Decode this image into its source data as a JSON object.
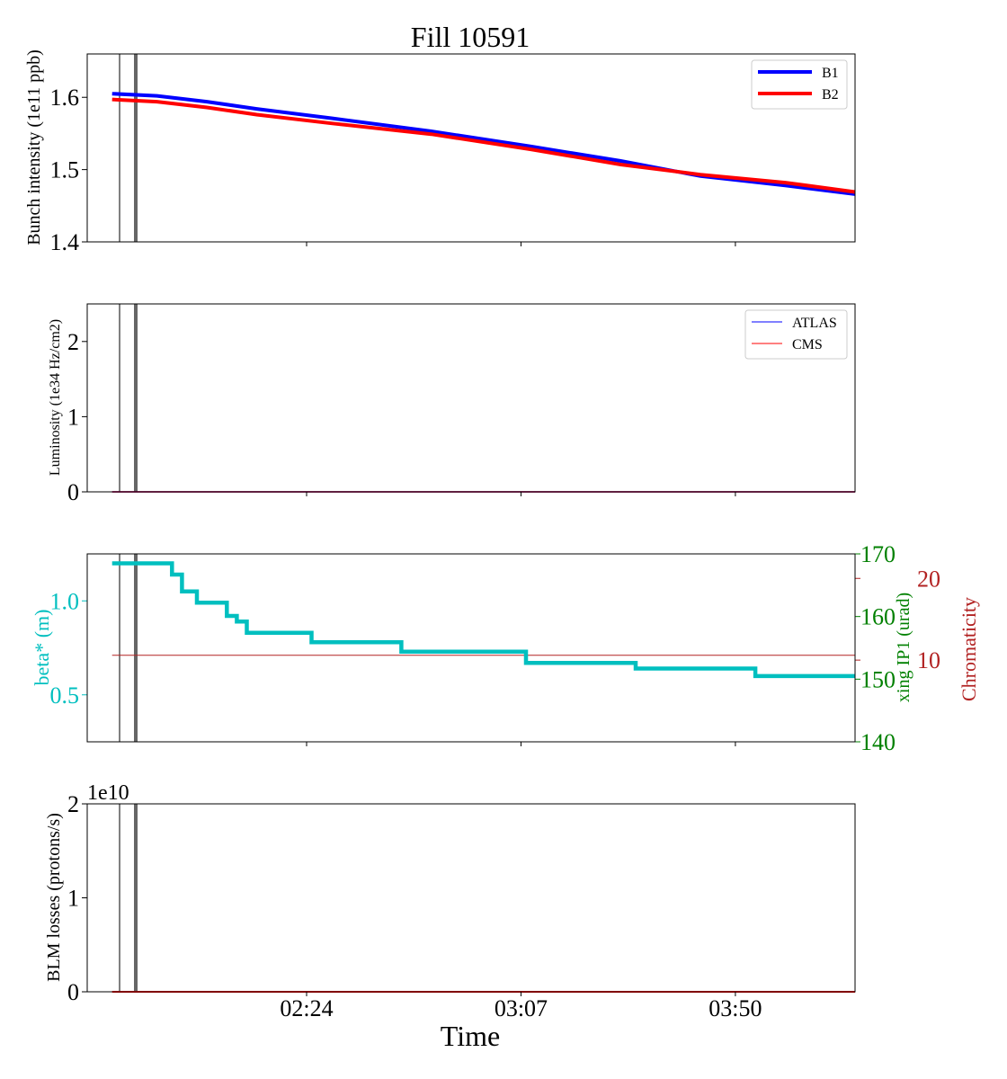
{
  "figure": {
    "title": "Fill 10591",
    "xlabel": "Time",
    "x_ticks": [
      "02:24",
      "03:07",
      "03:50"
    ]
  },
  "colors": {
    "b1": "#0000ff",
    "b2": "#ff0000",
    "beta": "#00bfbf",
    "xing": "#008000",
    "chroma": "#b22222",
    "marker": "#666666"
  },
  "chart_data": [
    {
      "type": "line",
      "ylabel": "Bunch intensity (1e11 ppb)",
      "ylim": [
        1.4,
        1.66
      ],
      "y_ticks": [
        "1.4",
        "1.5",
        "1.6"
      ],
      "legend": "top-right",
      "x": [
        "01:45",
        "01:54",
        "02:04",
        "02:14",
        "02:29",
        "02:49",
        "03:09",
        "03:27",
        "03:43",
        "04:00",
        "04:14"
      ],
      "series": [
        {
          "name": "B1",
          "values": [
            1.605,
            1.602,
            1.594,
            1.584,
            1.571,
            1.553,
            1.532,
            1.512,
            1.491,
            1.478,
            1.466
          ]
        },
        {
          "name": "B2",
          "values": [
            1.597,
            1.594,
            1.586,
            1.576,
            1.564,
            1.549,
            1.528,
            1.507,
            1.493,
            1.482,
            1.469
          ]
        }
      ]
    },
    {
      "type": "line",
      "ylabel": "Luminosity (1e34 Hz/cm2)",
      "ylim": [
        0,
        2.5
      ],
      "y_ticks": [
        "0",
        "1",
        "2"
      ],
      "legend": "top-right",
      "x": [
        "01:45",
        "04:14"
      ],
      "series": [
        {
          "name": "ATLAS",
          "values": [
            0,
            0
          ]
        },
        {
          "name": "CMS",
          "values": [
            0,
            0
          ]
        }
      ]
    },
    {
      "type": "line",
      "ylabel": "beta* (m)",
      "ylabel_right": "xing IP1 (urad)",
      "ylabel_right2": "Chromaticity",
      "ylim": [
        0.25,
        1.25
      ],
      "y_ticks": [
        "0.5",
        "1.0"
      ],
      "right_ylim": [
        140,
        170
      ],
      "right_ticks": [
        "140",
        "150",
        "160",
        "170"
      ],
      "right2_ylim": [
        0,
        23
      ],
      "right2_ticks": [
        "10",
        "20"
      ],
      "x": [
        "01:45",
        "01:55",
        "01:57",
        "01:59",
        "02:02",
        "02:08",
        "02:10",
        "02:12",
        "02:25",
        "02:43",
        "03:08",
        "03:30",
        "03:54",
        "04:14"
      ],
      "series": [
        {
          "name": "beta*",
          "values": [
            1.2,
            1.2,
            1.14,
            1.05,
            0.99,
            0.92,
            0.89,
            0.83,
            0.78,
            0.73,
            0.67,
            0.64,
            0.6,
            0.6
          ]
        },
        {
          "name": "Chromaticity",
          "values": [
            10.6,
            10.6,
            10.6,
            10.6,
            10.6,
            10.6,
            10.6,
            10.6,
            10.6,
            10.6,
            10.6,
            10.6,
            10.6,
            10.6
          ]
        }
      ]
    },
    {
      "type": "line",
      "ylabel": "BLM losses (protons/s)",
      "offset_text": "1e10",
      "ylim": [
        0,
        2
      ],
      "y_ticks": [
        "0",
        "1",
        "2"
      ],
      "x": [
        "01:45",
        "04:14"
      ],
      "series": [
        {
          "name": "BLM",
          "values": [
            0,
            0
          ]
        }
      ]
    }
  ]
}
